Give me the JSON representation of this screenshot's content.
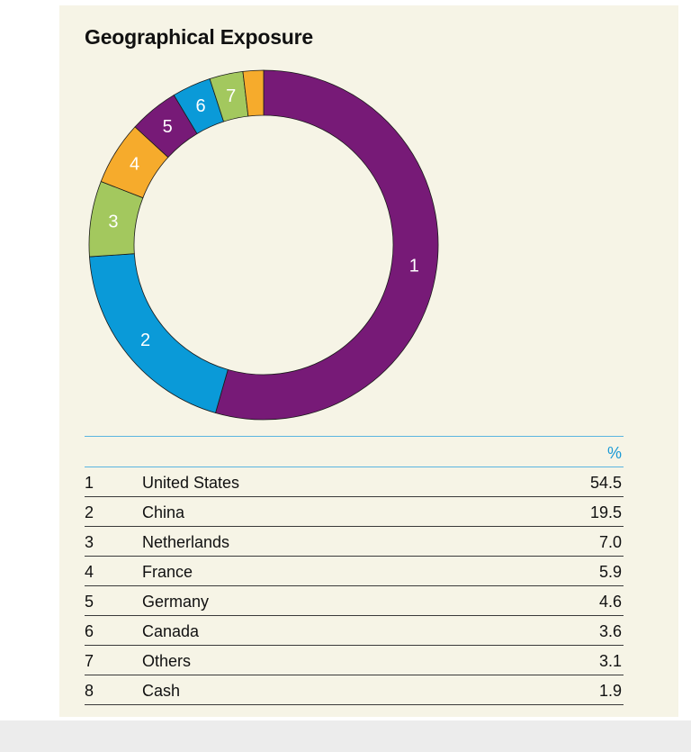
{
  "chart_data": {
    "type": "pie",
    "title": "Geographical Exposure",
    "column_header": "%",
    "slices": [
      {
        "index": "1",
        "label": "United States",
        "value": 54.5,
        "display": "54.5",
        "color": "#771a77"
      },
      {
        "index": "2",
        "label": "China",
        "value": 19.5,
        "display": "19.5",
        "color": "#0a9ad8"
      },
      {
        "index": "3",
        "label": "Netherlands",
        "value": 7.0,
        "display": "7.0",
        "color": "#a3c85e"
      },
      {
        "index": "4",
        "label": "France",
        "value": 5.9,
        "display": "5.9",
        "color": "#f6ab2c"
      },
      {
        "index": "5",
        "label": "Germany",
        "value": 4.6,
        "display": "4.6",
        "color": "#771a77"
      },
      {
        "index": "6",
        "label": "Canada",
        "value": 3.6,
        "display": "3.6",
        "color": "#0a9ad8"
      },
      {
        "index": "7",
        "label": "Others",
        "value": 3.1,
        "display": "3.1",
        "color": "#a3c85e"
      },
      {
        "index": "8",
        "label": "Cash",
        "value": 1.9,
        "display": "1.9",
        "color": "#f6ab2c"
      }
    ]
  }
}
